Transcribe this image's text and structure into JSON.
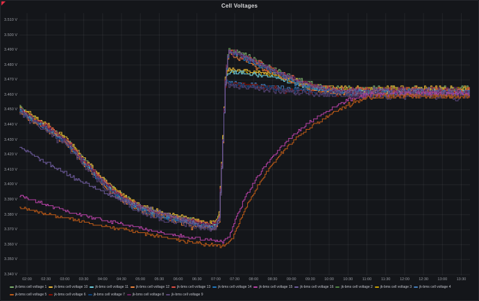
{
  "panel": {
    "title": "Cell Voltages"
  },
  "colors": {
    "background": "#14161a",
    "grid": "rgba(204,204,220,0.08)",
    "tick_text": "#9c9fa6",
    "legend_text": "#c0c2ca",
    "title_text": "#d8d9da",
    "error_indicator": "#e02f44"
  },
  "chart_data": {
    "type": "line",
    "title": "Cell Voltages",
    "ylabel": "Voltage",
    "y_unit": "V",
    "ylim": [
      3.34,
      3.51
    ],
    "y_tick_step": 0.01,
    "y_tick_labels": [
      "3.510 V",
      "3.500 V",
      "3.490 V",
      "3.480 V",
      "3.470 V",
      "3.460 V",
      "3.450 V",
      "3.440 V",
      "3.430 V",
      "3.420 V",
      "3.410 V",
      "3.400 V",
      "3.390 V",
      "3.380 V",
      "3.370 V",
      "3.360 V",
      "3.350 V",
      "3.340 V"
    ],
    "x_tick_labels": [
      "02:00",
      "02:30",
      "03:00",
      "03:30",
      "04:00",
      "04:30",
      "05:00",
      "05:30",
      "06:00",
      "06:30",
      "07:00",
      "07:30",
      "08:00",
      "08:30",
      "09:00",
      "09:30",
      "10:00",
      "10:30",
      "11:00",
      "11:30",
      "12:00",
      "12:30",
      "13:00",
      "13:30"
    ],
    "x_tick_hours": [
      2,
      2.5,
      3,
      3.5,
      4,
      4.5,
      5,
      5.5,
      6,
      6.5,
      7,
      7.5,
      8,
      8.5,
      9,
      9.5,
      10,
      10.5,
      11,
      11.5,
      12,
      12.5,
      13,
      13.5
    ],
    "x_range_hours": [
      1.798,
      13.73
    ],
    "grid": true,
    "legend_position": "bottom",
    "base_curves": {
      "cluster": [
        [
          1.8,
          3.4505
        ],
        [
          2.0,
          3.4465
        ],
        [
          2.5,
          3.4385
        ],
        [
          3.0,
          3.43
        ],
        [
          3.5,
          3.4155
        ],
        [
          4.0,
          3.402
        ],
        [
          4.5,
          3.3915
        ],
        [
          5.0,
          3.3845
        ],
        [
          5.5,
          3.38
        ],
        [
          6.0,
          3.377
        ],
        [
          6.5,
          3.3745
        ],
        [
          6.8,
          3.3725
        ],
        [
          7.0,
          3.3735
        ],
        [
          7.08,
          3.379
        ],
        [
          7.17,
          3.425
        ],
        [
          7.25,
          3.472
        ]
      ],
      "violet": [
        [
          1.8,
          3.426
        ],
        [
          2.25,
          3.4185
        ],
        [
          2.75,
          3.411
        ],
        [
          3.25,
          3.4045
        ],
        [
          3.75,
          3.3985
        ],
        [
          4.25,
          3.393
        ],
        [
          4.75,
          3.3875
        ],
        [
          5.25,
          3.3835
        ],
        [
          5.75,
          3.3795
        ],
        [
          6.25,
          3.376
        ],
        [
          6.75,
          3.3715
        ],
        [
          7.0,
          3.372
        ],
        [
          7.08,
          3.378
        ],
        [
          7.17,
          3.424
        ],
        [
          7.25,
          3.471
        ]
      ],
      "low_magenta": [
        [
          1.8,
          3.3925
        ],
        [
          2.5,
          3.3865
        ],
        [
          3.25,
          3.381
        ],
        [
          4.0,
          3.3765
        ],
        [
          4.75,
          3.3725
        ],
        [
          5.5,
          3.3685
        ],
        [
          6.25,
          3.365
        ],
        [
          6.75,
          3.3635
        ],
        [
          7.17,
          3.362
        ],
        [
          7.33,
          3.365
        ],
        [
          7.5,
          3.376
        ],
        [
          7.75,
          3.3905
        ],
        [
          8.0,
          3.4015
        ],
        [
          8.33,
          3.4135
        ],
        [
          8.67,
          3.424
        ],
        [
          9.0,
          3.432
        ],
        [
          9.33,
          3.439
        ],
        [
          9.67,
          3.445
        ],
        [
          10.0,
          3.45
        ],
        [
          10.33,
          3.4545
        ],
        [
          10.67,
          3.458
        ],
        [
          11.0,
          3.46
        ],
        [
          11.5,
          3.4608
        ],
        [
          13.73,
          3.4608
        ]
      ],
      "low_orange": [
        [
          1.8,
          3.385
        ],
        [
          2.5,
          3.3805
        ],
        [
          3.25,
          3.3765
        ],
        [
          4.0,
          3.3725
        ],
        [
          4.75,
          3.369
        ],
        [
          5.5,
          3.3655
        ],
        [
          6.25,
          3.362
        ],
        [
          6.75,
          3.36
        ],
        [
          7.2,
          3.359
        ],
        [
          7.4,
          3.363
        ],
        [
          7.6,
          3.374
        ],
        [
          7.83,
          3.387
        ],
        [
          8.17,
          3.402
        ],
        [
          8.5,
          3.414
        ],
        [
          8.83,
          3.424
        ],
        [
          9.17,
          3.432
        ],
        [
          9.5,
          3.4385
        ],
        [
          9.92,
          3.445
        ],
        [
          10.33,
          3.451
        ],
        [
          10.67,
          3.4555
        ],
        [
          11.0,
          3.4585
        ],
        [
          11.5,
          3.459
        ],
        [
          13.73,
          3.459
        ]
      ]
    },
    "tail_curves": {
      "a": [
        [
          7.33,
          3.4895
        ],
        [
          7.67,
          3.4865
        ],
        [
          8.0,
          3.4825
        ],
        [
          8.33,
          3.4785
        ],
        [
          8.67,
          3.4745
        ],
        [
          9.0,
          3.471
        ],
        [
          9.33,
          3.4675
        ],
        [
          9.67,
          3.465
        ],
        [
          10.0,
          3.4635
        ],
        [
          10.5,
          3.4625
        ],
        [
          13.73,
          3.4622
        ]
      ],
      "b": [
        [
          7.33,
          3.4755
        ],
        [
          7.67,
          3.4748
        ],
        [
          8.0,
          3.474
        ],
        [
          8.33,
          3.473
        ],
        [
          8.67,
          3.471
        ],
        [
          9.0,
          3.4685
        ],
        [
          9.33,
          3.466
        ],
        [
          9.67,
          3.464
        ],
        [
          10.0,
          3.463
        ],
        [
          10.5,
          3.4622
        ],
        [
          13.73,
          3.462
        ]
      ],
      "c": [
        [
          7.33,
          3.4685
        ],
        [
          7.67,
          3.4678
        ],
        [
          8.0,
          3.467
        ],
        [
          8.5,
          3.4658
        ],
        [
          9.0,
          3.4645
        ],
        [
          9.5,
          3.4636
        ],
        [
          10.0,
          3.4628
        ],
        [
          10.5,
          3.462
        ],
        [
          13.73,
          3.4618
        ]
      ]
    },
    "series": [
      {
        "id": "1",
        "label": "jk-bms cell voltage 1",
        "color": "#7EB26D",
        "base": "cluster",
        "tail": "a",
        "offset": 0.0015,
        "noise": 0.0012
      },
      {
        "id": "2",
        "label": "jk-bms cell voltage 2",
        "color": "#508642",
        "base": "cluster",
        "tail": "a",
        "offset": 0.0005,
        "noise": 0.0012
      },
      {
        "id": "3",
        "label": "jk-bms cell voltage 3",
        "color": "#CCA300",
        "base": "cluster",
        "tail": "b",
        "offset": 0.001,
        "noise": 0.0012
      },
      {
        "id": "4",
        "label": "jk-bms cell voltage 4",
        "color": "#447EBC",
        "base": "cluster",
        "tail": "c",
        "offset": -0.0005,
        "noise": 0.0012
      },
      {
        "id": "6",
        "label": "jk-bms cell voltage 6",
        "color": "#890F02",
        "base": "cluster",
        "tail": "c",
        "offset": -0.001,
        "noise": 0.0012
      },
      {
        "id": "7",
        "label": "jk-bms cell voltage 7",
        "color": "#0A437C",
        "base": "cluster",
        "tail": "c",
        "offset": -0.0015,
        "noise": 0.0012
      },
      {
        "id": "10",
        "label": "jk-bms cell voltage 10",
        "color": "#EAB839",
        "base": "cluster",
        "tail": "b",
        "offset": 0.002,
        "noise": 0.0012
      },
      {
        "id": "11",
        "label": "jk-bms cell voltage 11",
        "color": "#6ED0E0",
        "base": "cluster",
        "tail": "b",
        "offset": 0.0,
        "noise": 0.0012
      },
      {
        "id": "12",
        "label": "jk-bms cell voltage 12",
        "color": "#EF843C",
        "base": "cluster",
        "tail": "a",
        "offset": -0.002,
        "noise": 0.0012
      },
      {
        "id": "13",
        "label": "jk-bms cell voltage 13",
        "color": "#E24D42",
        "base": "cluster",
        "tail": "a",
        "offset": 0.0008,
        "noise": 0.0012
      },
      {
        "id": "14",
        "label": "jk-bms cell voltage 14",
        "color": "#1F78C1",
        "base": "cluster",
        "tail": "a",
        "offset": -0.0008,
        "noise": 0.0012
      },
      {
        "id": "8",
        "label": "jk-bms cell voltage 8",
        "color": "#6D1F62",
        "base": "cluster",
        "tail": "a",
        "offset": 0.0003,
        "noise": 0.0014
      },
      {
        "id": "9",
        "label": "jk-bms cell voltage 9",
        "color": "#584477",
        "base": "cluster",
        "tail": "c",
        "offset": -0.0025,
        "noise": 0.0018
      },
      {
        "id": "16",
        "label": "jk-bms cell voltage 16",
        "color": "#705DA0",
        "base": "violet",
        "tail": "a",
        "offset": 0.0,
        "noise": 0.0013
      },
      {
        "id": "15",
        "label": "jk-bms cell voltage 15",
        "color": "#BA43A9",
        "base": "low_magenta",
        "tail": null,
        "offset": 0.0,
        "noise": 0.0009
      },
      {
        "id": "5",
        "label": "jk-bms cell voltage 5",
        "color": "#C15C17",
        "base": "low_orange",
        "tail": null,
        "offset": 0.0,
        "noise": 0.0009
      }
    ],
    "legend_rows": [
      [
        "1",
        "10",
        "11",
        "12",
        "13",
        "14",
        "15",
        "16",
        "2",
        "3",
        "4"
      ],
      [
        "5",
        "6",
        "7",
        "8",
        "9"
      ]
    ]
  }
}
